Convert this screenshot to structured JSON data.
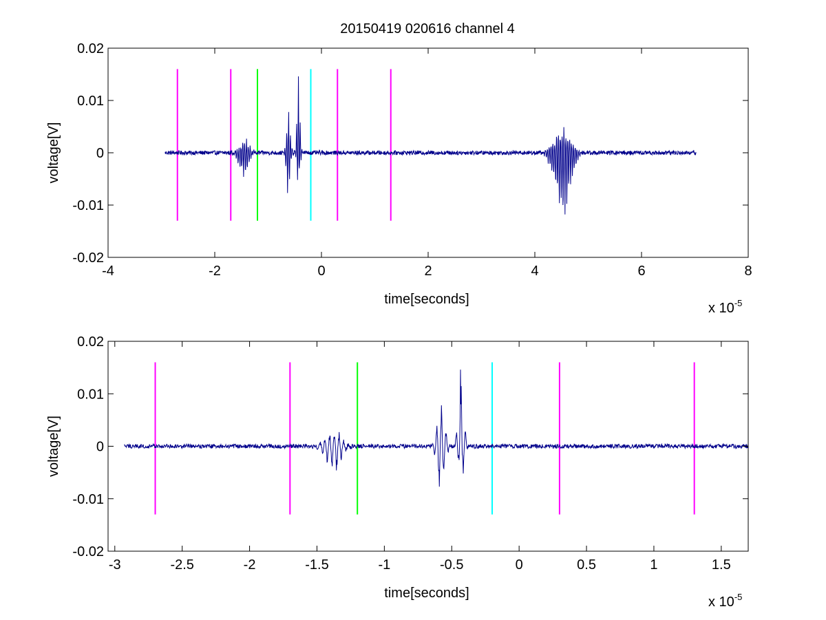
{
  "figure": {
    "background": "#ffffff",
    "title": "20150419 020616 channel 4",
    "signal_color": "#00008b",
    "marker_colors": {
      "magenta": "#ff00ff",
      "green": "#00ff00",
      "cyan": "#00ffff"
    }
  },
  "chart_data": [
    {
      "type": "line",
      "panel": "top",
      "title": "20150419 020616 channel 4",
      "xlabel": "time[seconds]",
      "ylabel": "voltage[V]",
      "x_multiplier": "x 10",
      "x_multiplier_exponent": "-5",
      "x_scale": 1e-05,
      "xlim": [
        -4,
        8
      ],
      "ylim": [
        -0.02,
        0.02
      ],
      "x_ticks": [
        "-4",
        "-2",
        "0",
        "2",
        "4",
        "6",
        "8"
      ],
      "y_ticks": [
        "-0.02",
        "-0.01",
        "0",
        "0.01",
        "0.02"
      ],
      "grid": false,
      "signal": {
        "x_range": [
          -2.93,
          7.02
        ],
        "baseline": 0,
        "noise_amplitude": 0.0004,
        "bursts": [
          {
            "center": -1.45,
            "half_width": 0.15,
            "min": -0.0046,
            "max": 0.0027
          },
          {
            "center": -0.62,
            "half_width": 0.06,
            "min": -0.0077,
            "max": 0.0078
          },
          {
            "center": -0.43,
            "half_width": 0.05,
            "min": -0.0052,
            "max": 0.0146
          },
          {
            "center": 4.52,
            "half_width": 0.25,
            "min": -0.0118,
            "max": 0.0049
          }
        ]
      },
      "markers": [
        {
          "x": -2.7,
          "color": "magenta",
          "y_range": [
            -0.013,
            0.016
          ]
        },
        {
          "x": -1.7,
          "color": "magenta",
          "y_range": [
            -0.013,
            0.016
          ]
        },
        {
          "x": -1.2,
          "color": "green",
          "y_range": [
            -0.013,
            0.016
          ]
        },
        {
          "x": -0.2,
          "color": "cyan",
          "y_range": [
            -0.013,
            0.016
          ]
        },
        {
          "x": 0.3,
          "color": "magenta",
          "y_range": [
            -0.013,
            0.016
          ]
        },
        {
          "x": 1.3,
          "color": "magenta",
          "y_range": [
            -0.013,
            0.016
          ]
        }
      ]
    },
    {
      "type": "line",
      "panel": "bottom",
      "xlabel": "time[seconds]",
      "ylabel": "voltage[V]",
      "x_multiplier": "x 10",
      "x_multiplier_exponent": "-5",
      "x_scale": 1e-05,
      "xlim": [
        -3.05,
        1.7
      ],
      "ylim": [
        -0.02,
        0.02
      ],
      "x_ticks": [
        "-3",
        "-2.5",
        "-2",
        "-1.5",
        "-1",
        "-0.5",
        "0",
        "0.5",
        "1",
        "1.5"
      ],
      "y_ticks": [
        "-0.02",
        "-0.01",
        "0",
        "0.01",
        "0.02"
      ],
      "grid": false,
      "signal": {
        "x_range": [
          -2.93,
          1.7
        ],
        "baseline": 0,
        "noise_amplitude": 0.0004,
        "bursts": [
          {
            "center": -1.38,
            "half_width": 0.1,
            "min": -0.0046,
            "max": 0.0027
          },
          {
            "center": -0.58,
            "half_width": 0.05,
            "min": -0.0077,
            "max": 0.0078
          },
          {
            "center": -0.43,
            "half_width": 0.035,
            "min": -0.0052,
            "max": 0.0146
          }
        ]
      },
      "markers": [
        {
          "x": -2.7,
          "color": "magenta",
          "y_range": [
            -0.013,
            0.016
          ]
        },
        {
          "x": -1.7,
          "color": "magenta",
          "y_range": [
            -0.013,
            0.016
          ]
        },
        {
          "x": -1.2,
          "color": "green",
          "y_range": [
            -0.013,
            0.016
          ]
        },
        {
          "x": -0.2,
          "color": "cyan",
          "y_range": [
            -0.013,
            0.016
          ]
        },
        {
          "x": 0.3,
          "color": "magenta",
          "y_range": [
            -0.013,
            0.016
          ]
        },
        {
          "x": 1.3,
          "color": "magenta",
          "y_range": [
            -0.013,
            0.016
          ]
        }
      ]
    }
  ]
}
